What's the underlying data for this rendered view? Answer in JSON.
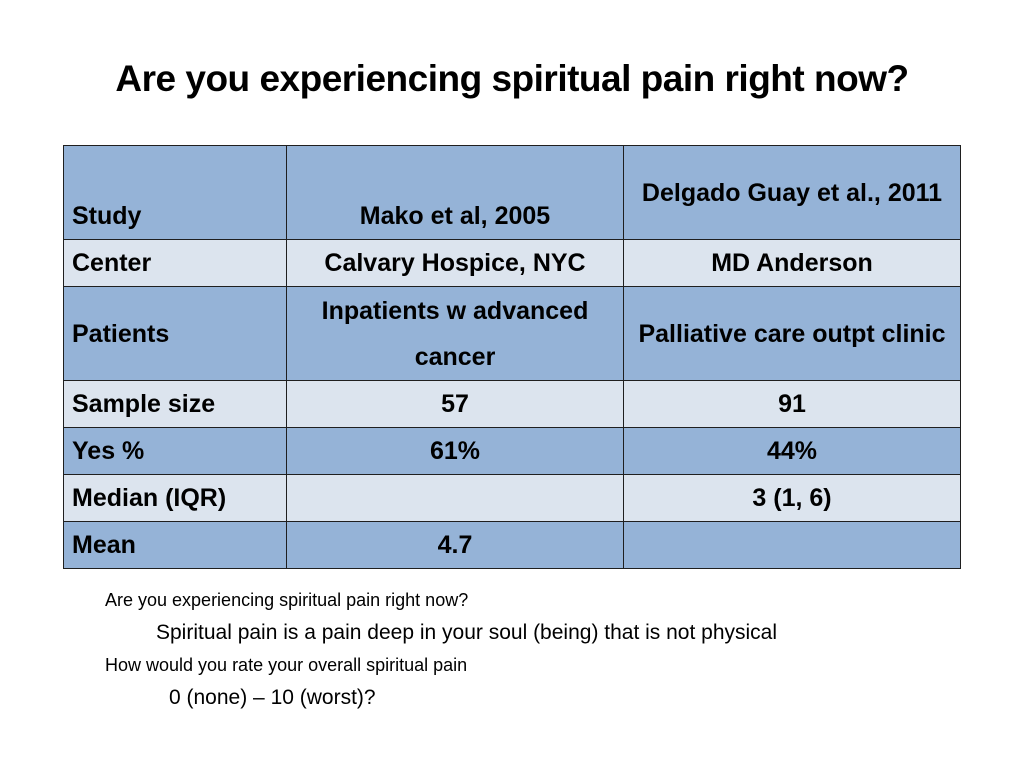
{
  "slide": {
    "title": "Are you experiencing spiritual pain right now?"
  },
  "table": {
    "header": {
      "label": "Study",
      "col1": "Mako et al, 2005",
      "col2": "Delgado Guay et al., 2011"
    },
    "rows": [
      {
        "label": "Center",
        "col1": "Calvary Hospice, NYC",
        "col2": "MD Anderson"
      },
      {
        "label": "Patients",
        "col1": "Inpatients w advanced cancer",
        "col2": "Palliative care outpt clinic"
      },
      {
        "label": "Sample size",
        "col1": "57",
        "col2": "91"
      },
      {
        "label": "Yes %",
        "col1": "61%",
        "col2": "44%"
      },
      {
        "label": "Median (IQR)",
        "col1": "",
        "col2": "3 (1, 6)"
      },
      {
        "label": "Mean",
        "col1": "4.7",
        "col2": ""
      }
    ],
    "colors": {
      "dark_row": "#95b3d7",
      "light_row": "#dce4ee",
      "border": "#1f1f1f"
    }
  },
  "notes": {
    "question1": "Are you experiencing spiritual pain right now?",
    "definition1": "Spiritual pain is a pain deep in your soul (being) that is not physical",
    "question2": "How would you rate your overall spiritual pain",
    "scale2": "0 (none) – 10 (worst)?"
  }
}
